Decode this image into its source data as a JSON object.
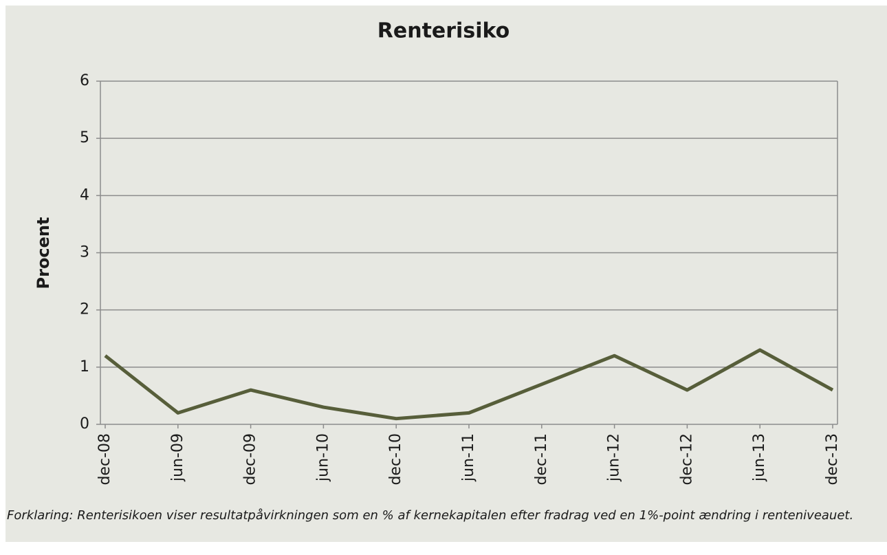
{
  "chart_data": {
    "type": "line",
    "title": "Renterisiko",
    "y_label": "Procent",
    "categories": [
      "dec-08",
      "jun-09",
      "dec-09",
      "jun-10",
      "dec-10",
      "jun-11",
      "dec-11",
      "jun-12",
      "dec-12",
      "jun-13",
      "dec-13"
    ],
    "series": [
      {
        "name": "Renterisiko",
        "color": "#575e3a",
        "values": [
          1.2,
          0.2,
          0.6,
          0.3,
          0.1,
          0.2,
          0.7,
          1.2,
          0.6,
          1.3,
          0.6
        ]
      }
    ],
    "ylim": [
      0,
      6
    ],
    "yticks": [
      0,
      1,
      2,
      3,
      4,
      5,
      6
    ],
    "grid": true,
    "note": "Forklaring: Renterisikoen viser resultatpåvirkningen som en % af kernekapitalen efter fradrag ved en 1%-point ændring i renteniveauet."
  }
}
